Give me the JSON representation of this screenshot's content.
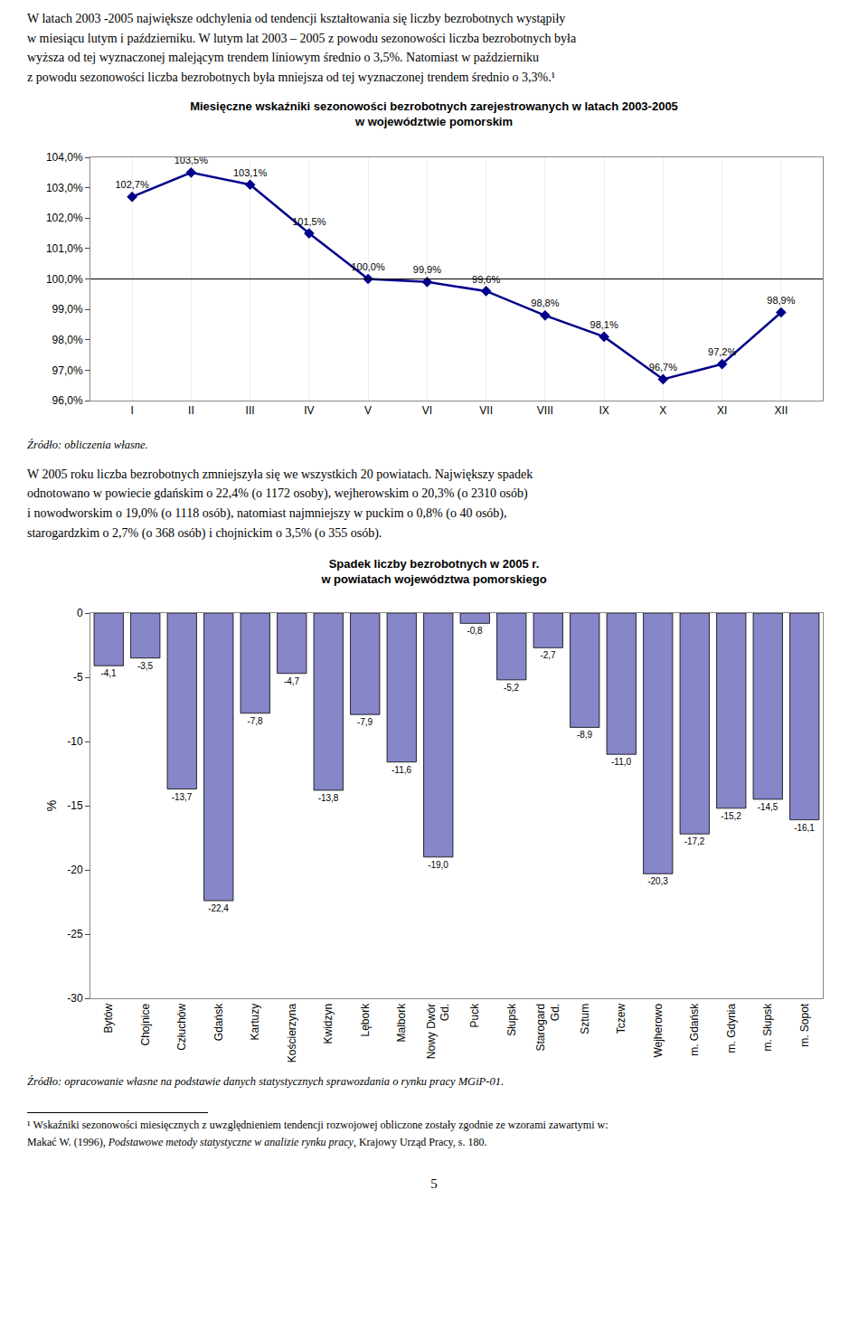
{
  "paragraphs": [
    [
      "W latach 2003 -2005 największe odchylenia od tendencji kształtowania się liczby bezrobotnych wystąpiły",
      "w miesiącu lutym i październiku. W lutym lat 2003 – 2005 z powodu sezonowości liczba bezrobotnych była",
      "wyższa od tej wyznaczonej malejącym trendem liniowym średnio o 3,5%. Natomiast w październiku",
      "z powodu sezonowości liczba bezrobotnych była mniejsza od tej wyznaczonej trendem średnio o 3,3%.¹"
    ],
    [
      "W 2005 roku liczba bezrobotnych zmniejszyła się we wszystkich 20 powiatach. Największy spadek",
      "odnotowano w powiecie gdańskim o 22,4% (o 1172 osoby), wejherowskim o 20,3% (o 2310 osób)",
      "i nowodworskim o 19,0% (o 1118 osób), natomiast najmniejszy w puckim o 0,8% (o 40 osób),",
      "starogardzkim o 2,7% (o 368 osób) i chojnickim o 3,5% (o 355 osób)."
    ]
  ],
  "chart_data": [
    {
      "type": "line",
      "title": "Miesięczne wskaźniki sezonowości bezrobotnych zarejestrowanych w latach 2003-2005\nw województwie pomorskim",
      "categories": [
        "I",
        "II",
        "III",
        "IV",
        "V",
        "VI",
        "VII",
        "VIII",
        "IX",
        "X",
        "XI",
        "XII"
      ],
      "values": [
        102.7,
        103.5,
        103.1,
        101.5,
        100.0,
        99.9,
        99.6,
        98.8,
        98.1,
        96.7,
        97.2,
        98.9
      ],
      "value_labels": [
        "102,7%",
        "103,5%",
        "103,1%",
        "101,5%",
        "100,0%",
        "99,9%",
        "99,6%",
        "98,8%",
        "98,1%",
        "96,7%",
        "97,2%",
        "98,9%"
      ],
      "data_labels": true,
      "color": "#00008B",
      "marker": "diamond",
      "line_style": "solid",
      "ylim": [
        96.0,
        104.0
      ],
      "yticks": [
        {
          "value": 96.0,
          "label": "96,0%"
        },
        {
          "value": 97.0,
          "label": "97,0%"
        },
        {
          "value": 98.0,
          "label": "98,0%"
        },
        {
          "value": 99.0,
          "label": "99,0%"
        },
        {
          "value": 100.0,
          "label": "100,0%"
        },
        {
          "value": 101.0,
          "label": "101,0%"
        },
        {
          "value": 102.0,
          "label": "102,0%"
        },
        {
          "value": 103.0,
          "label": "103,0%"
        },
        {
          "value": 104.0,
          "label": "104,0%"
        }
      ],
      "reference_line": 100.0,
      "grid": "x",
      "source": "Źródło: obliczenia własne."
    },
    {
      "type": "bar",
      "title": "Spadek liczby bezrobotnych w 2005 r.\nw powiatach województwa pomorskiego",
      "categories": [
        "Bytów",
        "Chojnice",
        "Człuchów",
        "Gdańsk",
        "Kartuzy",
        "Kościerzyna",
        "Kwidzyn",
        "Lębork",
        "Malbork",
        "Nowy Dwór\nGd.",
        "Puck",
        "Słupsk",
        "Starogard\nGd.",
        "Sztum",
        "Tczew",
        "Wejherowo",
        "m. Gdańsk",
        "m. Gdynia",
        "m. Słupsk",
        "m. Sopot"
      ],
      "values": [
        -4.1,
        -3.5,
        -13.7,
        -22.4,
        -7.8,
        -4.7,
        -13.8,
        -7.9,
        -11.6,
        -19.0,
        -0.8,
        -5.2,
        -2.7,
        -8.9,
        -11.0,
        -20.3,
        -17.2,
        -15.2,
        -14.5,
        -16.1
      ],
      "value_labels": [
        "-4,1",
        "-3,5",
        "-13,7",
        "-22,4",
        "-7,8",
        "-4,7",
        "-13,8",
        "-7,9",
        "-11,6",
        "-19,0",
        "-0,8",
        "-5,2",
        "-2,7",
        "-8,9",
        "-11,0",
        "-20,3",
        "-17,2",
        "-15,2",
        "-14,5",
        "-16,1"
      ],
      "data_labels": true,
      "color": "#8686C8",
      "y_label": "%",
      "ylim": [
        -30,
        0
      ],
      "yticks": [
        0,
        -5,
        -10,
        -15,
        -20,
        -25,
        -30
      ],
      "grid": false,
      "source": "Źródło: opracowanie własne na podstawie danych statystycznych sprawozdania o rynku pracy MGiP-01."
    }
  ],
  "footnote": [
    "¹ Wskaźniki sezonowości miesięcznych z uwzględnieniem tendencji rozwojowej obliczone zostały zgodnie ze wzorami zawartymi w:",
    "Makać W. (1996), Podstawowe metody statystyczne w analizie rynku pracy, Krajowy Urząd Pracy, s. 180."
  ],
  "footnote_italic": "Podstawowe metody statystyczne w analizie rynku pracy",
  "page_number": "5"
}
